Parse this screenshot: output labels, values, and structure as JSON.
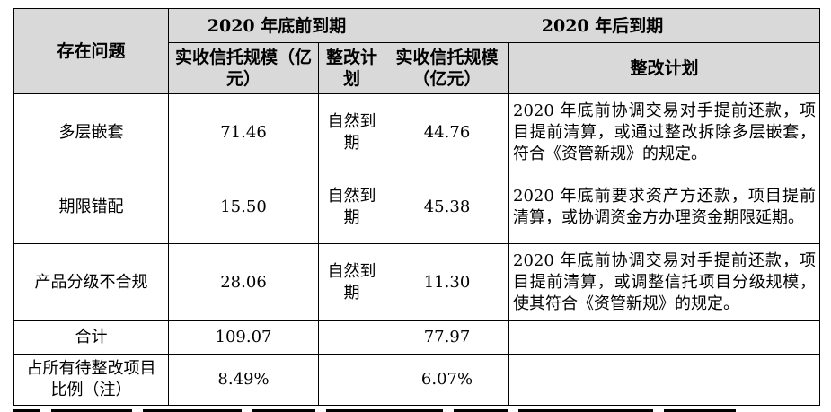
{
  "header": {
    "issue": "存在问题",
    "before_group": "2020 年底前到期",
    "after_group": "2020 年后到期",
    "scale_col": "实收信托规模（亿元）",
    "plan_short": "整改计划",
    "plan_long": "整改计划"
  },
  "rows": [
    {
      "issue": "多层嵌套",
      "before_scale": "71.46",
      "before_plan": "自然到期",
      "after_scale": "44.76",
      "after_plan": "2020 年底前协调交易对手提前还款，项目提前清算，或通过整改拆除多层嵌套，符合《资管新规》的规定。"
    },
    {
      "issue": "期限错配",
      "before_scale": "15.50",
      "before_plan": "自然到期",
      "after_scale": "45.38",
      "after_plan": "2020 年底前要求资产方还款，项目提前清算，或协调资金方办理资金期限延期。"
    },
    {
      "issue": "产品分级不合规",
      "before_scale": "28.06",
      "before_plan": "自然到期",
      "after_scale": "11.30",
      "after_plan": "2020 年底前协调交易对手提前还款，项目提前清算，或调整信托项目分级规模，使其符合《资管新规》的规定。"
    }
  ],
  "total": {
    "label": "合计",
    "before_scale": "109.07",
    "after_scale": "77.97"
  },
  "ratio": {
    "label": "占所有待整改项目比例（注）",
    "before": "8.49%",
    "after": "6.07%"
  }
}
